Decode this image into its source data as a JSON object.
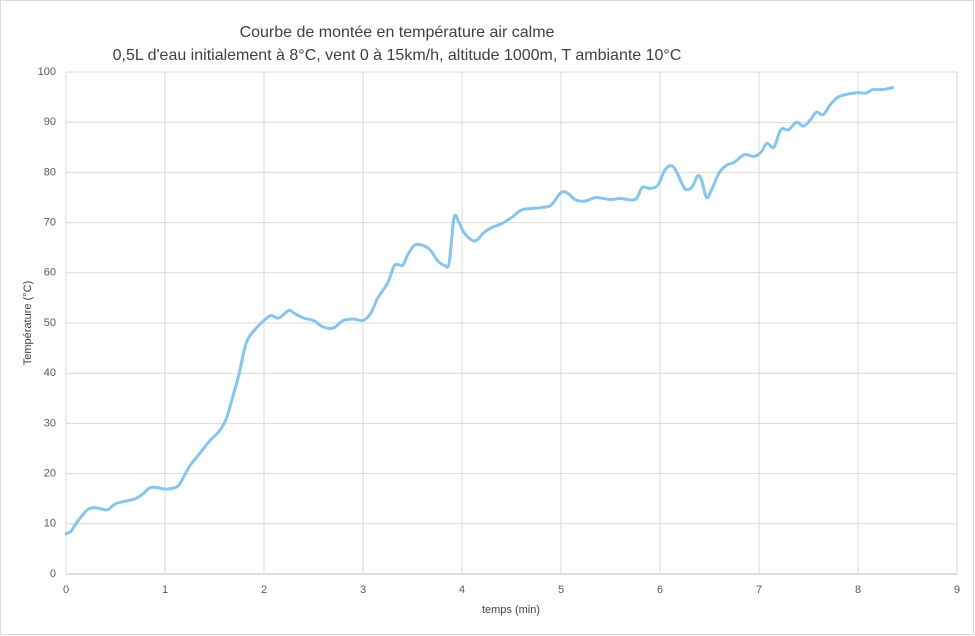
{
  "chart_data": {
    "type": "line",
    "title": "Courbe de montée en température air calme",
    "subtitle": "0,5L d'eau initialement à 8°C, vent 0 à 15km/h, altitude 1000m, T ambiante 10°C",
    "x_label": "temps (min)",
    "y_label": "Température (°C)",
    "xlim": [
      0,
      9
    ],
    "xticks": [
      0,
      1,
      2,
      3,
      4,
      5,
      6,
      7,
      8,
      9
    ],
    "ylim": [
      0,
      100
    ],
    "yticks": [
      0,
      10,
      20,
      30,
      40,
      50,
      60,
      70,
      80,
      90,
      100
    ],
    "grid": true,
    "x": [
      0,
      0.05,
      0.1,
      0.2,
      0.27,
      0.35,
      0.42,
      0.5,
      0.6,
      0.7,
      0.78,
      0.85,
      0.92,
      1.0,
      1.1,
      1.15,
      1.25,
      1.35,
      1.45,
      1.55,
      1.62,
      1.68,
      1.75,
      1.82,
      1.9,
      2.0,
      2.07,
      2.15,
      2.25,
      2.3,
      2.4,
      2.5,
      2.6,
      2.7,
      2.8,
      2.9,
      3.0,
      3.08,
      3.15,
      3.25,
      3.32,
      3.4,
      3.45,
      3.52,
      3.6,
      3.68,
      3.75,
      3.82,
      3.87,
      3.92,
      3.97,
      4.02,
      4.1,
      4.15,
      4.22,
      4.3,
      4.4,
      4.5,
      4.6,
      4.7,
      4.8,
      4.9,
      5.0,
      5.07,
      5.15,
      5.25,
      5.35,
      5.5,
      5.6,
      5.75,
      5.82,
      5.9,
      5.98,
      6.05,
      6.12,
      6.17,
      6.25,
      6.32,
      6.38,
      6.42,
      6.47,
      6.52,
      6.6,
      6.68,
      6.75,
      6.85,
      6.95,
      7.02,
      7.08,
      7.15,
      7.22,
      7.3,
      7.38,
      7.45,
      7.52,
      7.58,
      7.65,
      7.72,
      7.8,
      7.9,
      8.0,
      8.08,
      8.15,
      8.25,
      8.35
    ],
    "series": [
      {
        "name": "Température",
        "color": "#87c6ea",
        "values": [
          8,
          8.5,
          10,
          12.5,
          13.2,
          13,
          12.8,
          14,
          14.5,
          15,
          16,
          17.2,
          17.2,
          16.9,
          17.2,
          18,
          21.5,
          24,
          26.5,
          28.5,
          31,
          35,
          40,
          46,
          48.5,
          50.5,
          51.5,
          51,
          52.5,
          52,
          51,
          50.5,
          49.2,
          49,
          50.5,
          50.8,
          50.5,
          52,
          55,
          58,
          61.5,
          61.5,
          63.5,
          65.5,
          65.5,
          64.5,
          62.5,
          61.5,
          62,
          71,
          70,
          68,
          66.5,
          66.5,
          68,
          69,
          69.8,
          71,
          72.5,
          72.8,
          73,
          73.5,
          76,
          75.8,
          74.5,
          74.3,
          75,
          74.6,
          74.8,
          74.6,
          77,
          76.8,
          77.5,
          80.5,
          81.3,
          80,
          76.8,
          77,
          79.3,
          78.5,
          75,
          76.5,
          80,
          81.5,
          82,
          83.5,
          83.2,
          84,
          85.8,
          85,
          88.5,
          88.5,
          90,
          89.2,
          90.5,
          92,
          91.5,
          93.5,
          95,
          95.6,
          95.9,
          95.8,
          96.5,
          96.5,
          96.9
        ]
      }
    ]
  }
}
